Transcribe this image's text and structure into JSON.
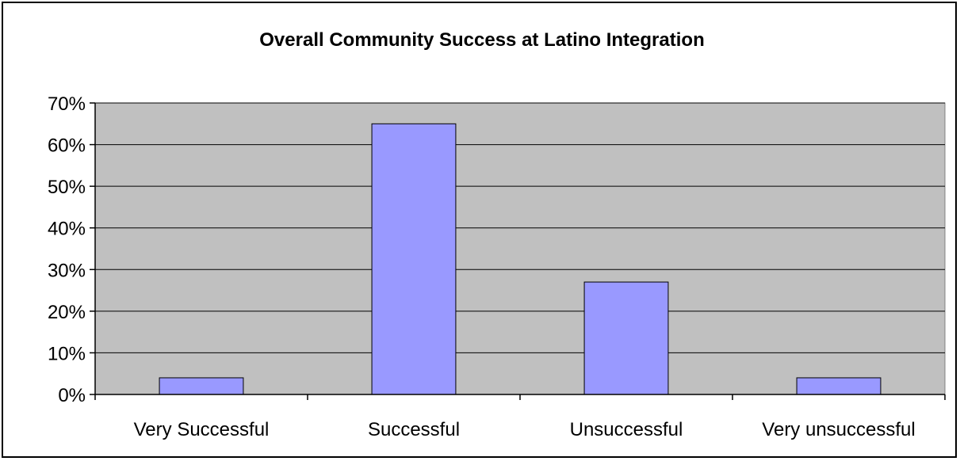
{
  "chart_data": {
    "type": "bar",
    "title": "Overall Community Success at Latino Integration",
    "xlabel": "",
    "ylabel": "",
    "categories": [
      "Very Successful",
      "Successful",
      "Unsuccessful",
      "Very unsuccessful"
    ],
    "values": [
      0.04,
      0.65,
      0.27,
      0.04
    ],
    "ylim": [
      0,
      0.7
    ],
    "y_ticks": [
      0,
      0.1,
      0.2,
      0.3,
      0.4,
      0.5,
      0.6,
      0.7
    ],
    "y_tick_labels": [
      "0%",
      "10%",
      "20%",
      "30%",
      "40%",
      "50%",
      "60%",
      "70%"
    ],
    "grid": true,
    "legend": "none",
    "colors": {
      "bar_fill": "#9999ff",
      "bar_stroke": "#000000",
      "plot_background": "#c0c0c0",
      "gridline": "#000000"
    }
  }
}
